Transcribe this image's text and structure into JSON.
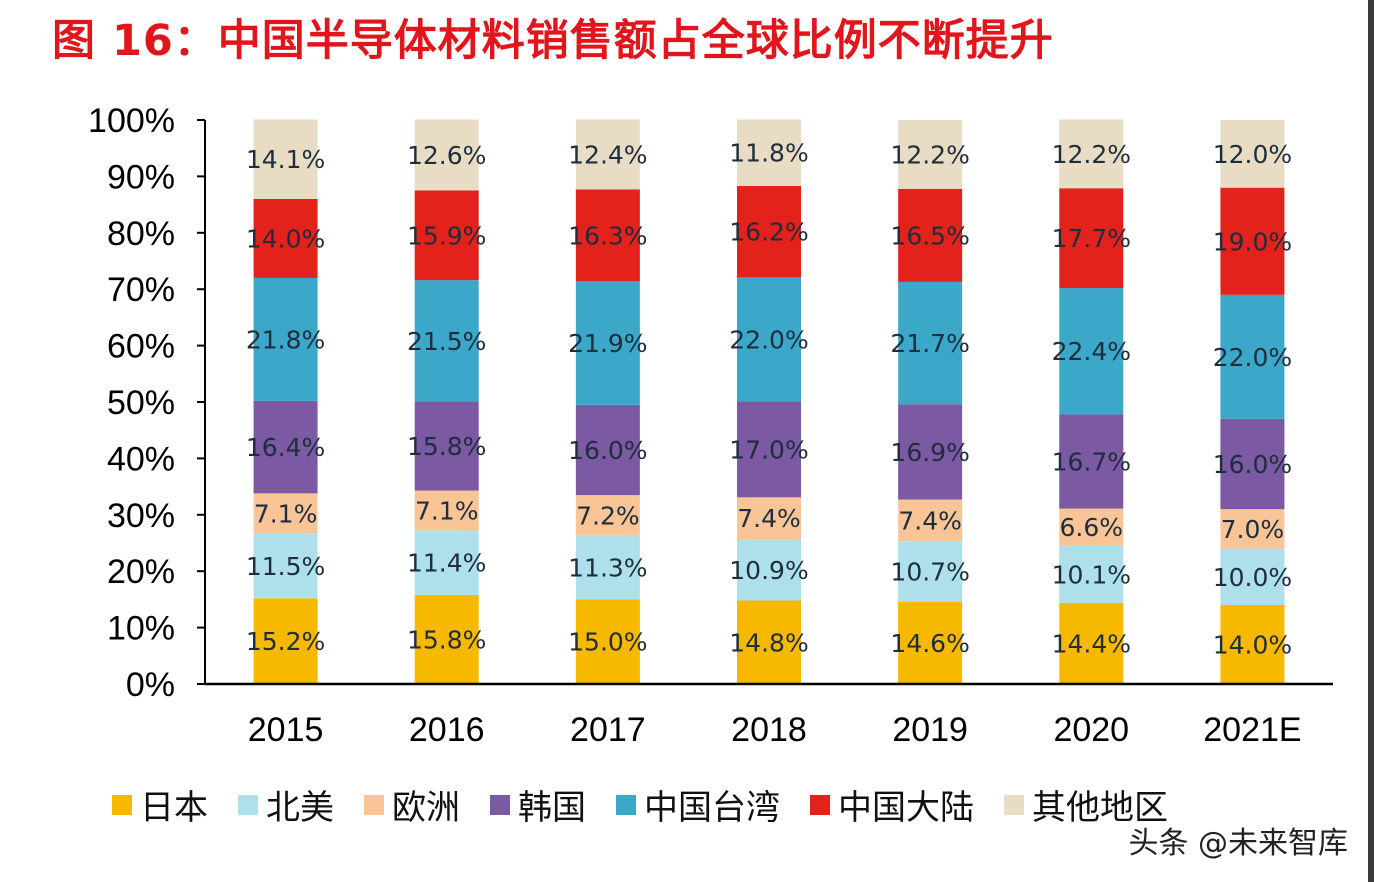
{
  "title": "图 16：中国半导体材料销售额占全球比例不断提升",
  "watermark": "头条 @未来智库",
  "chart_data": {
    "type": "bar",
    "stacked": true,
    "categories": [
      "2015",
      "2016",
      "2017",
      "2018",
      "2019",
      "2020",
      "2021E"
    ],
    "y_ticks": [
      "0%",
      "10%",
      "20%",
      "30%",
      "40%",
      "50%",
      "60%",
      "70%",
      "80%",
      "90%",
      "100%"
    ],
    "ylim": [
      0,
      100
    ],
    "legend_position": "bottom",
    "series": [
      {
        "name": "日本",
        "color": "#f7b800",
        "values": [
          15.2,
          15.8,
          15.0,
          14.8,
          14.6,
          14.4,
          14.0
        ],
        "labels": [
          "15.2%",
          "15.8%",
          "15.0%",
          "14.8%",
          "14.6%",
          "14.4%",
          "14.0%"
        ]
      },
      {
        "name": "北美",
        "color": "#aee0ec",
        "values": [
          11.5,
          11.4,
          11.3,
          10.9,
          10.7,
          10.1,
          10.0
        ],
        "labels": [
          "11.5%",
          "11.4%",
          "11.3%",
          "10.9%",
          "10.7%",
          "10.1%",
          "10.0%"
        ]
      },
      {
        "name": "欧洲",
        "color": "#f9c597",
        "values": [
          7.1,
          7.1,
          7.2,
          7.4,
          7.4,
          6.6,
          7.0
        ],
        "labels": [
          "7.1%",
          "7.1%",
          "7.2%",
          "7.4%",
          "7.4%",
          "6.6%",
          "7.0%"
        ]
      },
      {
        "name": "韩国",
        "color": "#7b59a3",
        "values": [
          16.4,
          15.8,
          16.0,
          17.0,
          16.9,
          16.7,
          16.0
        ],
        "labels": [
          "16.4%",
          "15.8%",
          "16.0%",
          "17.0%",
          "16.9%",
          "16.7%",
          "16.0%"
        ]
      },
      {
        "name": "中国台湾",
        "color": "#3ba7c9",
        "values": [
          21.8,
          21.5,
          21.9,
          22.0,
          21.7,
          22.4,
          22.0
        ],
        "labels": [
          "21.8%",
          "21.5%",
          "21.9%",
          "22.0%",
          "21.7%",
          "22.4%",
          "22.0%"
        ]
      },
      {
        "name": "中国大陆",
        "color": "#e3221b",
        "values": [
          14.0,
          15.9,
          16.3,
          16.2,
          16.5,
          17.7,
          19.0
        ],
        "labels": [
          "14.0%",
          "15.9%",
          "16.3%",
          "16.2%",
          "16.5%",
          "17.7%",
          "19.0%"
        ]
      },
      {
        "name": "其他地区",
        "color": "#e8dcc5",
        "values": [
          14.1,
          12.6,
          12.4,
          11.8,
          12.2,
          12.2,
          12.0
        ],
        "labels": [
          "14.1%",
          "12.6%",
          "12.4%",
          "11.8%",
          "12.2%",
          "12.2%",
          "12.0%"
        ]
      }
    ]
  }
}
